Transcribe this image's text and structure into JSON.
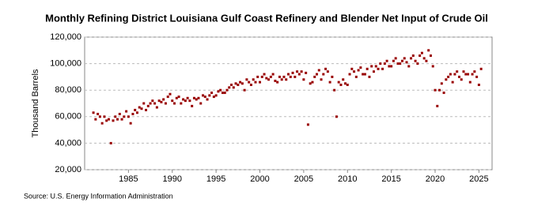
{
  "chart_data": {
    "type": "scatter",
    "title": "Monthly Refining District Louisiana Gulf Coast Refinery and Blender Net Input of Crude Oil",
    "y_label": "Thousand Barrels",
    "source": "Source: U.S. Energy Information Administration",
    "xlim": [
      1980,
      2026.5
    ],
    "xticks": [
      1985,
      1990,
      1995,
      2000,
      2005,
      2010,
      2015,
      2020,
      2025
    ],
    "ylim": [
      20000,
      120000
    ],
    "yticks": [
      {
        "value": 20000,
        "label": "20,000"
      },
      {
        "value": 40000,
        "label": "40,000"
      },
      {
        "value": 60000,
        "label": "60,000"
      },
      {
        "value": 80000,
        "label": "80,000"
      },
      {
        "value": 100000,
        "label": "100,000"
      },
      {
        "value": 120000,
        "label": "120,000"
      }
    ],
    "grid": true,
    "series": [
      {
        "color": "#990000",
        "x": [
          1981,
          1981.25,
          1981.5,
          1981.75,
          1982,
          1982.25,
          1982.5,
          1982.75,
          1983,
          1983.25,
          1983.5,
          1983.75,
          1984,
          1984.25,
          1984.5,
          1984.75,
          1985,
          1985.25,
          1985.5,
          1985.75,
          1986,
          1986.25,
          1986.5,
          1986.75,
          1987,
          1987.25,
          1987.5,
          1987.75,
          1988,
          1988.25,
          1988.5,
          1988.75,
          1989,
          1989.25,
          1989.5,
          1989.75,
          1990,
          1990.25,
          1990.5,
          1990.75,
          1991,
          1991.25,
          1991.5,
          1991.75,
          1992,
          1992.25,
          1992.5,
          1992.75,
          1993,
          1993.25,
          1993.5,
          1993.75,
          1994,
          1994.25,
          1994.5,
          1994.75,
          1995,
          1995.25,
          1995.5,
          1995.75,
          1996,
          1996.25,
          1996.5,
          1996.75,
          1997,
          1997.25,
          1997.5,
          1997.75,
          1998,
          1998.25,
          1998.5,
          1998.75,
          1999,
          1999.25,
          1999.5,
          1999.75,
          2000,
          2000.25,
          2000.5,
          2000.75,
          2001,
          2001.25,
          2001.5,
          2001.75,
          2002,
          2002.25,
          2002.5,
          2002.75,
          2003,
          2003.25,
          2003.5,
          2003.75,
          2004,
          2004.25,
          2004.5,
          2004.75,
          2005,
          2005.25,
          2005.5,
          2005.75,
          2006,
          2006.25,
          2006.5,
          2006.75,
          2007,
          2007.25,
          2007.5,
          2007.75,
          2008,
          2008.25,
          2008.5,
          2008.75,
          2009,
          2009.25,
          2009.5,
          2009.75,
          2010,
          2010.25,
          2010.5,
          2010.75,
          2011,
          2011.25,
          2011.5,
          2011.75,
          2012,
          2012.25,
          2012.5,
          2012.75,
          2013,
          2013.25,
          2013.5,
          2013.75,
          2014,
          2014.25,
          2014.5,
          2014.75,
          2015,
          2015.25,
          2015.5,
          2015.75,
          2016,
          2016.25,
          2016.5,
          2016.75,
          2017,
          2017.25,
          2017.5,
          2017.75,
          2018,
          2018.25,
          2018.5,
          2018.75,
          2019,
          2019.25,
          2019.5,
          2019.75,
          2020,
          2020.25,
          2020.5,
          2020.75,
          2021,
          2021.25,
          2021.5,
          2021.75,
          2022,
          2022.25,
          2022.5,
          2022.75,
          2023,
          2023.25,
          2023.5,
          2023.75,
          2024,
          2024.25,
          2024.5,
          2024.75,
          2025,
          2025.25
        ],
        "values": [
          63000,
          58000,
          62000,
          60000,
          55000,
          60000,
          57000,
          58000,
          40000,
          57000,
          60000,
          58000,
          62000,
          58000,
          60000,
          64000,
          60000,
          55000,
          62000,
          65000,
          63000,
          67000,
          66000,
          70000,
          65000,
          68000,
          70000,
          72000,
          70000,
          67000,
          72000,
          71000,
          73000,
          70000,
          75000,
          77000,
          72000,
          70000,
          74000,
          75000,
          70000,
          73000,
          72000,
          74000,
          72000,
          68000,
          74000,
          73000,
          74000,
          70000,
          76000,
          75000,
          73000,
          76000,
          78000,
          75000,
          76000,
          79000,
          80000,
          78000,
          78000,
          80000,
          82000,
          84000,
          82000,
          85000,
          84000,
          86000,
          85000,
          80000,
          88000,
          86000,
          84000,
          88000,
          86000,
          90000,
          86000,
          90000,
          92000,
          89000,
          88000,
          90000,
          92000,
          87000,
          86000,
          90000,
          88000,
          90000,
          88000,
          92000,
          90000,
          93000,
          90000,
          94000,
          92000,
          94000,
          88000,
          93000,
          54000,
          85000,
          86000,
          90000,
          92000,
          95000,
          88000,
          92000,
          96000,
          94000,
          86000,
          90000,
          80000,
          60000,
          86000,
          84000,
          88000,
          85000,
          84000,
          92000,
          96000,
          94000,
          90000,
          95000,
          97000,
          92000,
          92000,
          96000,
          90000,
          98000,
          94000,
          98000,
          96000,
          100000,
          96000,
          100000,
          102000,
          98000,
          98000,
          102000,
          104000,
          100000,
          100000,
          102000,
          104000,
          101000,
          98000,
          104000,
          106000,
          102000,
          100000,
          106000,
          108000,
          104000,
          102000,
          110000,
          106000,
          98000,
          80000,
          68000,
          80000,
          85000,
          78000,
          88000,
          90000,
          92000,
          86000,
          92000,
          94000,
          90000,
          88000,
          94000,
          92000,
          92000,
          86000,
          92000,
          94000,
          90000,
          84000,
          96000
        ]
      }
    ]
  }
}
